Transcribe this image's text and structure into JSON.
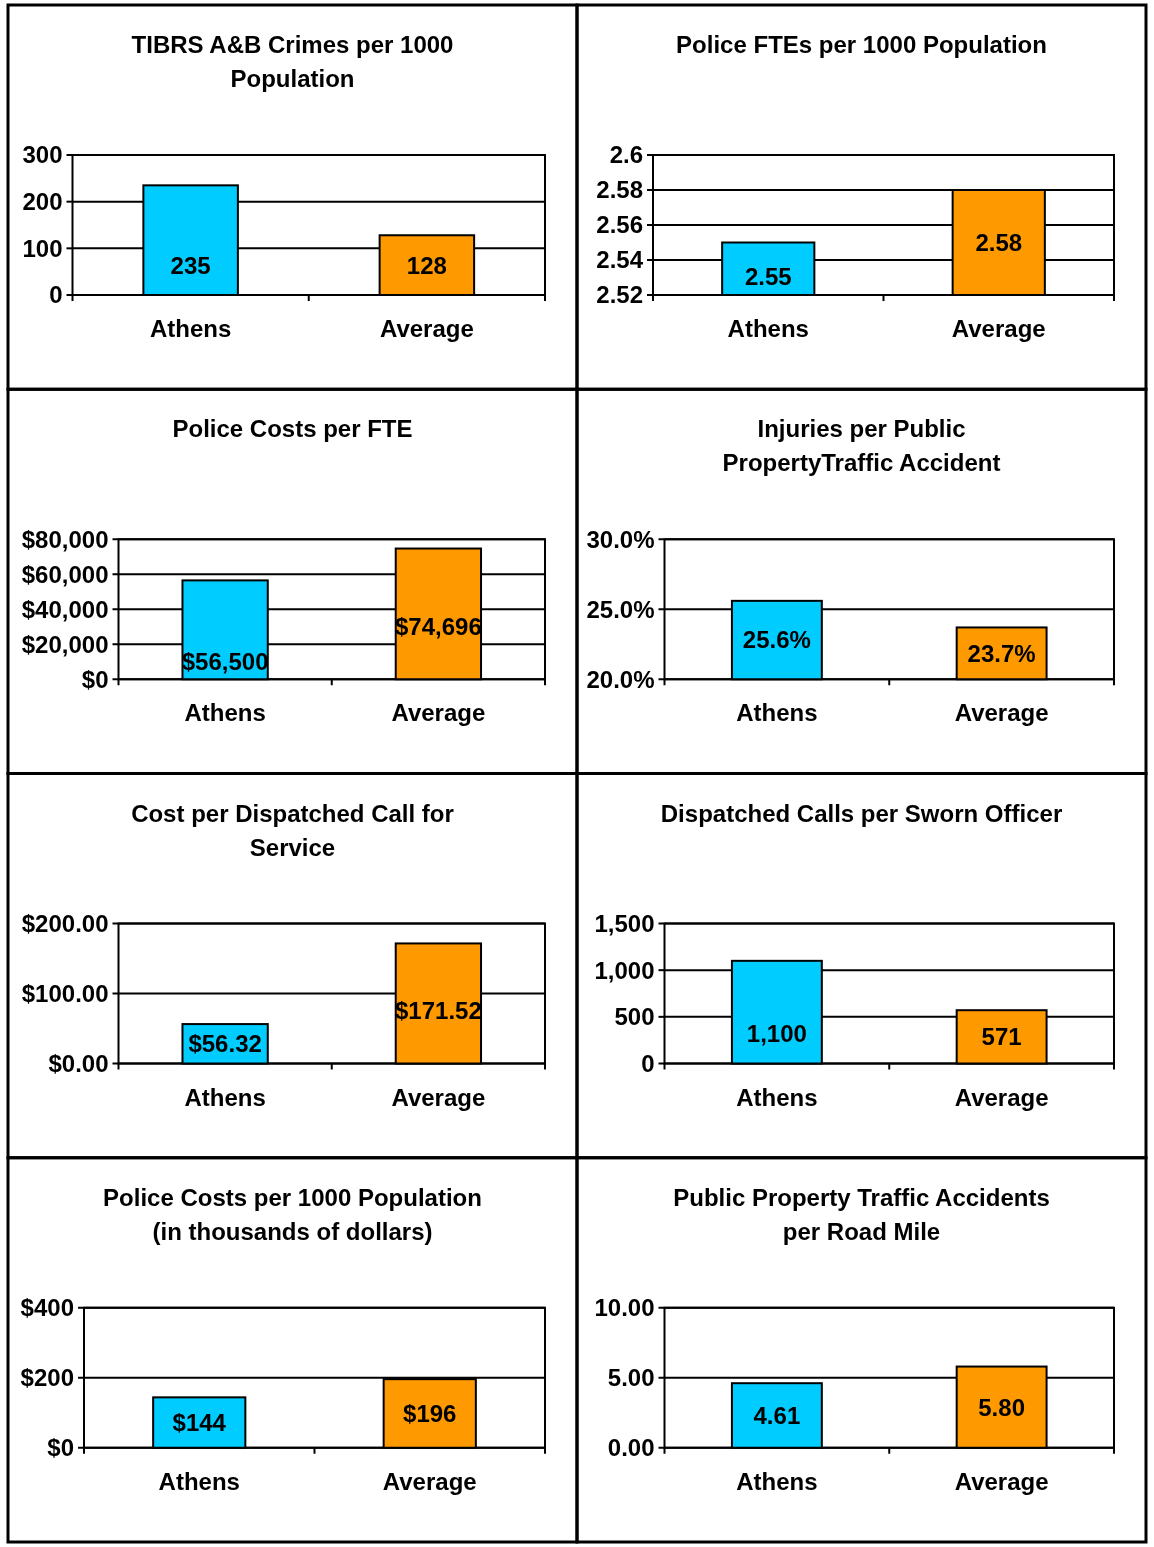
{
  "chart_data": [
    {
      "type": "bar",
      "title": "TIBRS A&B Crimes per 1000 Population",
      "categories": [
        "Athens",
        "Average"
      ],
      "values": [
        235,
        128
      ],
      "colors": [
        "#00ccff",
        "#ff9900"
      ],
      "value_labels": [
        "235",
        "128"
      ],
      "ylim": [
        0,
        300
      ],
      "yticks": [
        0,
        100,
        200,
        300
      ],
      "grid": "y"
    },
    {
      "type": "bar",
      "title": "Police FTEs per 1000 Population",
      "categories": [
        "Athens",
        "Average"
      ],
      "values": [
        2.55,
        2.58
      ],
      "colors": [
        "#00ccff",
        "#ff9900"
      ],
      "value_labels": [
        "2.55",
        "2.58"
      ],
      "ylim": [
        2.52,
        2.6
      ],
      "yticks": [
        2.52,
        2.54,
        2.56,
        2.58,
        2.6
      ],
      "grid": "y"
    },
    {
      "type": "bar",
      "title": "Police Costs per FTE",
      "categories": [
        "Athens",
        "Average"
      ],
      "values": [
        56500,
        74696
      ],
      "colors": [
        "#00ccff",
        "#ff9900"
      ],
      "value_labels": [
        "$56,500",
        "$74,696"
      ],
      "ylim": [
        0,
        80000
      ],
      "yticks": [
        {
          "value": 0,
          "label": "$0"
        },
        {
          "value": 20000,
          "label": "$20,000"
        },
        {
          "value": 40000,
          "label": "$40,000"
        },
        {
          "value": 60000,
          "label": "$60,000"
        },
        {
          "value": 80000,
          "label": "$80,000"
        }
      ],
      "grid": "y"
    },
    {
      "type": "bar",
      "title": "Injuries per Public PropertyTraffic Accident",
      "categories": [
        "Athens",
        "Average"
      ],
      "values": [
        25.6,
        23.7
      ],
      "colors": [
        "#00ccff",
        "#ff9900"
      ],
      "value_labels": [
        "25.6%",
        "23.7%"
      ],
      "ylim": [
        20,
        30
      ],
      "yticks": [
        {
          "value": 20,
          "label": "20.0%"
        },
        {
          "value": 25,
          "label": "25.0%"
        },
        {
          "value": 30,
          "label": "30.0%"
        }
      ],
      "grid": "y"
    },
    {
      "type": "bar",
      "title": "Cost per Dispatched Call for Service",
      "categories": [
        "Athens",
        "Average"
      ],
      "values": [
        56.32,
        171.52
      ],
      "colors": [
        "#00ccff",
        "#ff9900"
      ],
      "value_labels": [
        "$56.32",
        "$171.52"
      ],
      "ylim": [
        0,
        200
      ],
      "yticks": [
        {
          "value": 0,
          "label": "$0.00"
        },
        {
          "value": 100,
          "label": "$100.00"
        },
        {
          "value": 200,
          "label": "$200.00"
        }
      ],
      "grid": "y"
    },
    {
      "type": "bar",
      "title": "Dispatched Calls per Sworn Officer",
      "categories": [
        "Athens",
        "Average"
      ],
      "values": [
        1100,
        571
      ],
      "colors": [
        "#00ccff",
        "#ff9900"
      ],
      "value_labels": [
        "1,100",
        "571"
      ],
      "ylim": [
        0,
        1500
      ],
      "yticks": [
        0,
        500,
        {
          "value": 1000,
          "label": "1,000"
        },
        {
          "value": 1500,
          "label": "1,500"
        }
      ],
      "grid": "y"
    },
    {
      "type": "bar",
      "title": "Police Costs per 1000 Population (in thousands of dollars)",
      "categories": [
        "Athens",
        "Average"
      ],
      "values": [
        144,
        196
      ],
      "colors": [
        "#00ccff",
        "#ff9900"
      ],
      "value_labels": [
        "$144",
        "$196"
      ],
      "ylim": [
        0,
        400
      ],
      "yticks": [
        {
          "value": 0,
          "label": "$0"
        },
        {
          "value": 200,
          "label": "$200"
        },
        {
          "value": 400,
          "label": "$400"
        }
      ],
      "grid": "y"
    },
    {
      "type": "bar",
      "title": "Public Property Traffic Accidents per Road Mile",
      "categories": [
        "Athens",
        "Average"
      ],
      "values": [
        4.61,
        5.8
      ],
      "colors": [
        "#00ccff",
        "#ff9900"
      ],
      "value_labels": [
        "4.61",
        "5.80"
      ],
      "ylim": [
        0,
        10
      ],
      "yticks": [
        {
          "value": 0,
          "label": "0.00"
        },
        {
          "value": 5,
          "label": "5.00"
        },
        {
          "value": 10,
          "label": "10.00"
        }
      ],
      "grid": "y"
    }
  ]
}
